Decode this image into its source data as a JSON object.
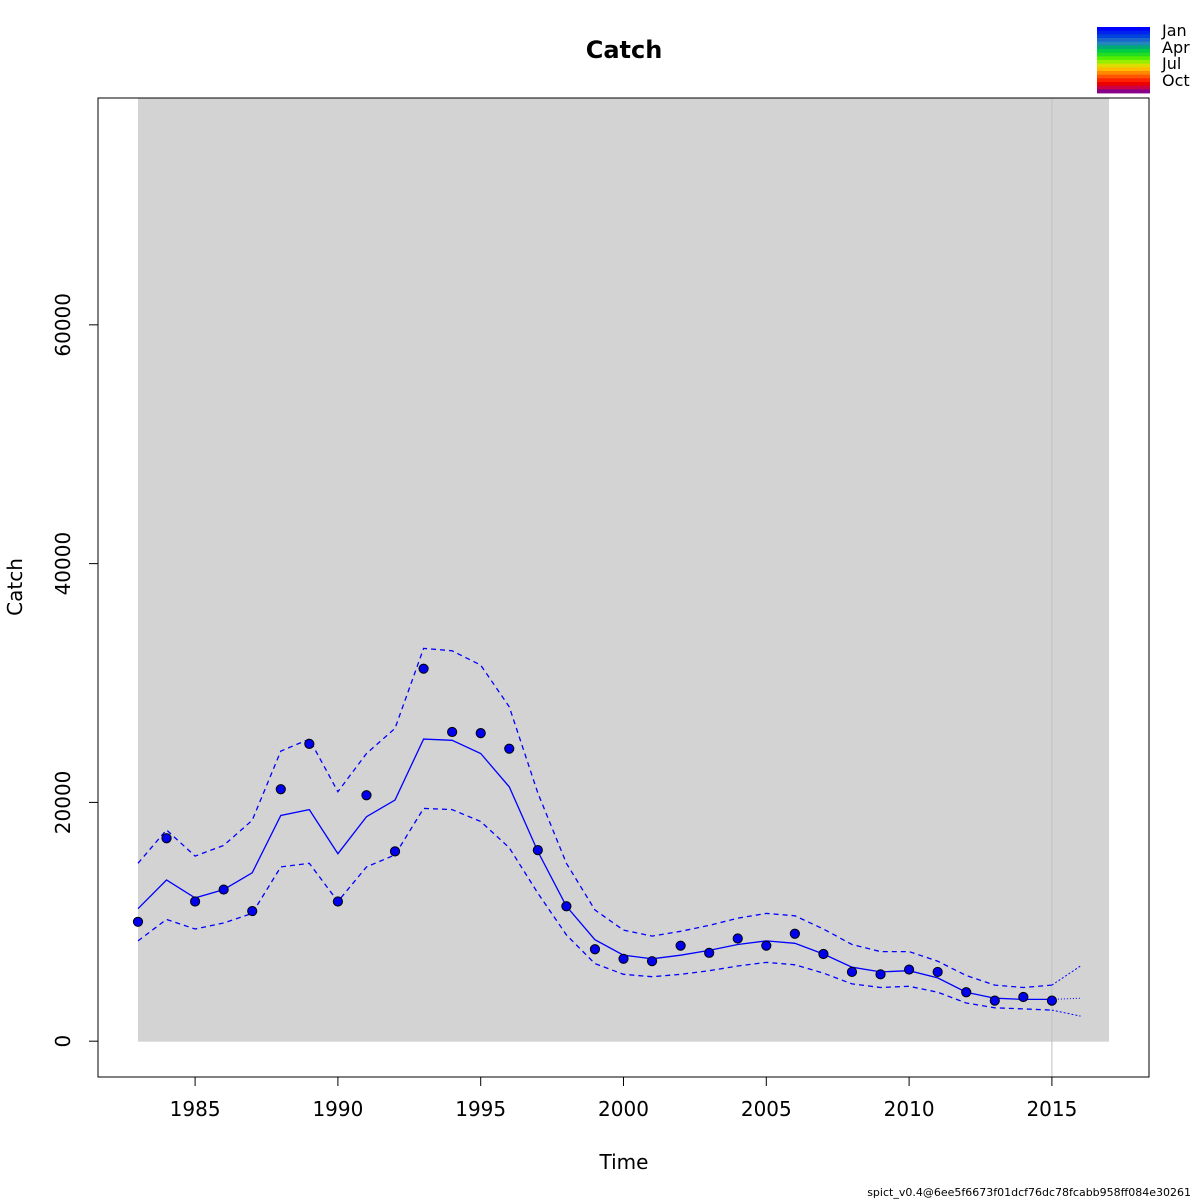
{
  "chart_data": {
    "type": "line",
    "title": "Catch",
    "xlabel": "Time",
    "ylabel": "Catch",
    "xlim": [
      1981.6,
      2018.4
    ],
    "ylim": [
      -3000,
      79000
    ],
    "shaded_range": [
      1983,
      2017
    ],
    "vline": 2015,
    "x_ticks": [
      1985,
      1990,
      1995,
      2000,
      2005,
      2010,
      2015
    ],
    "y_ticks": [
      0,
      20000,
      40000,
      60000
    ],
    "colors": {
      "background_shade": "#d3d3d3",
      "line": "#0000ff",
      "point": "#0000ee",
      "vline": "#c0c0c0"
    },
    "observed": {
      "x": [
        1983,
        1984,
        1985,
        1986,
        1987,
        1988,
        1989,
        1990,
        1991,
        1992,
        1993,
        1994,
        1995,
        1996,
        1997,
        1998,
        1999,
        2000,
        2001,
        2002,
        2003,
        2004,
        2005,
        2006,
        2007,
        2008,
        2009,
        2010,
        2011,
        2012,
        2013,
        2014,
        2015
      ],
      "y": [
        10000,
        17000,
        11700,
        12700,
        10900,
        21100,
        24900,
        11700,
        20600,
        15900,
        31200,
        25900,
        25800,
        24500,
        16000,
        11300,
        7700,
        6900,
        6700,
        8000,
        7400,
        8600,
        8000,
        9000,
        7300,
        5800,
        5600,
        6000,
        5800,
        4100,
        3400,
        3700,
        3400
      ]
    },
    "estimate": {
      "x": [
        1983,
        1984,
        1985,
        1986,
        1987,
        1988,
        1989,
        1990,
        1991,
        1992,
        1993,
        1994,
        1995,
        1996,
        1997,
        1998,
        1999,
        2000,
        2001,
        2002,
        2003,
        2004,
        2005,
        2006,
        2007,
        2008,
        2009,
        2010,
        2011,
        2012,
        2013,
        2014,
        2015
      ],
      "y": [
        11100,
        13500,
        12000,
        12700,
        14100,
        18900,
        19400,
        15700,
        18800,
        20200,
        25300,
        25200,
        24100,
        21300,
        15900,
        11300,
        8500,
        7200,
        6900,
        7200,
        7600,
        8100,
        8400,
        8200,
        7300,
        6200,
        5800,
        5900,
        5300,
        4100,
        3600,
        3500,
        3500
      ]
    },
    "upper_ci": {
      "x": [
        1983,
        1984,
        1985,
        1986,
        1987,
        1988,
        1989,
        1990,
        1991,
        1992,
        1993,
        1994,
        1995,
        1996,
        1997,
        1998,
        1999,
        2000,
        2001,
        2002,
        2003,
        2004,
        2005,
        2006,
        2007,
        2008,
        2009,
        2010,
        2011,
        2012,
        2013,
        2014,
        2015
      ],
      "y": [
        14900,
        17700,
        15500,
        16400,
        18500,
        24300,
        25300,
        20900,
        24100,
        26200,
        32900,
        32700,
        31500,
        28000,
        20800,
        14900,
        11000,
        9300,
        8800,
        9200,
        9700,
        10300,
        10700,
        10500,
        9400,
        8100,
        7500,
        7500,
        6700,
        5500,
        4700,
        4500,
        4700
      ]
    },
    "lower_ci": {
      "x": [
        1983,
        1984,
        1985,
        1986,
        1987,
        1988,
        1989,
        1990,
        1991,
        1992,
        1993,
        1994,
        1995,
        1996,
        1997,
        1998,
        1999,
        2000,
        2001,
        2002,
        2003,
        2004,
        2005,
        2006,
        2007,
        2008,
        2009,
        2010,
        2011,
        2012,
        2013,
        2014,
        2015
      ],
      "y": [
        8400,
        10200,
        9400,
        9900,
        10700,
        14600,
        14900,
        11700,
        14600,
        15600,
        19500,
        19400,
        18400,
        16200,
        12400,
        8900,
        6500,
        5600,
        5400,
        5600,
        5900,
        6300,
        6600,
        6400,
        5700,
        4800,
        4500,
        4600,
        4100,
        3200,
        2800,
        2700,
        2600
      ]
    },
    "forecast": {
      "estimate": {
        "x": [
          2015,
          2016
        ],
        "y": [
          3500,
          3600
        ]
      },
      "upper_ci": {
        "x": [
          2015,
          2016
        ],
        "y": [
          4700,
          6300
        ]
      },
      "lower_ci": {
        "x": [
          2015,
          2016
        ],
        "y": [
          2600,
          2100
        ]
      }
    },
    "legend": {
      "position": "top-right",
      "labels": [
        "Jan",
        "Apr",
        "Jul",
        "Oct"
      ],
      "gradient": [
        "#0000ff",
        "#0022ee",
        "#0044dd",
        "#1a66cc",
        "#2288bb",
        "#00aa77",
        "#00cc44",
        "#22dd22",
        "#55ee00",
        "#99ee00",
        "#dddd00",
        "#ffbb00",
        "#ff8800",
        "#ff5500",
        "#ff2200",
        "#ee0000",
        "#cc0044",
        "#880088"
      ]
    },
    "footer": "spict_v0.4@6ee5f6673f01dcf76dc78fcabb958ff084e30261"
  }
}
